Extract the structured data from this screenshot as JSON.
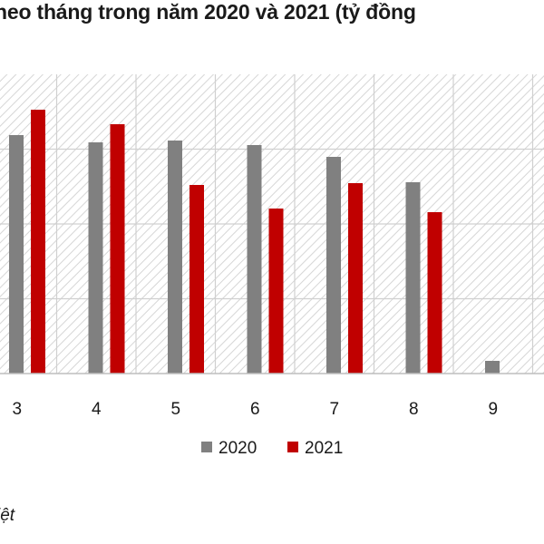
{
  "title": "heo tháng trong năm 2020 và 2021 (tỷ đồng",
  "source_fragment": "iệt",
  "colors": {
    "series_2020": "#808080",
    "series_2021": "#c00000",
    "grid": "#d0d0d0",
    "hatch": "#d6d6d6"
  },
  "chart_data": {
    "type": "bar",
    "title": "heo tháng trong năm 2020 và 2021 (tỷ đồng",
    "categories": [
      "3",
      "4",
      "5",
      "6",
      "7",
      "8",
      "9"
    ],
    "series": [
      {
        "name": "2020",
        "values": [
          263,
          255,
          257,
          252,
          239,
          211,
          14
        ]
      },
      {
        "name": "2021",
        "values": [
          291,
          275,
          208,
          182,
          210,
          178,
          null
        ]
      }
    ],
    "ylim": [
      0,
      330
    ],
    "grid": true,
    "legend_position": "bottom-center",
    "xlabel": "",
    "ylabel": ""
  }
}
